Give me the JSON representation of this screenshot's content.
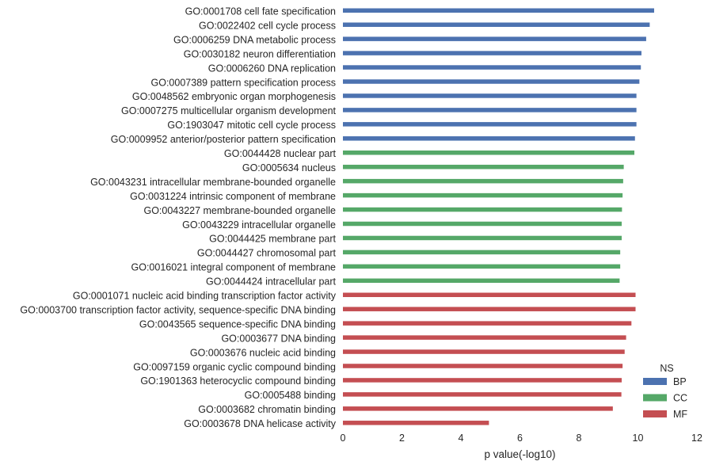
{
  "chart_data": {
    "type": "bar",
    "orientation": "horizontal",
    "xlabel": "p value(-log10)",
    "xlim": [
      0,
      12
    ],
    "xticks": [
      "0",
      "2",
      "4",
      "6",
      "8",
      "10",
      "12"
    ],
    "grid": false,
    "legend": {
      "title": "NS",
      "placement": "bottom-right",
      "entries": [
        {
          "name": "BP",
          "color": "#4C72B0"
        },
        {
          "name": "CC",
          "color": "#55A868"
        },
        {
          "name": "MF",
          "color": "#C44E52"
        }
      ]
    },
    "series": [
      {
        "name": "BP",
        "color": "#4C72B0",
        "categories": [
          "GO:0001708 cell fate specification",
          "GO:0022402 cell cycle process",
          "GO:0006259 DNA metabolic process",
          "GO:0030182 neuron differentiation",
          "GO:0006260 DNA replication",
          "GO:0007389 pattern specification process",
          "GO:0048562 embryonic organ morphogenesis",
          "GO:0007275 multicellular organism development",
          "GO:1903047 mitotic cell cycle process",
          "GO:0009952 anterior/posterior pattern specification"
        ],
        "values": [
          10.55,
          10.4,
          10.28,
          10.12,
          10.1,
          10.05,
          9.95,
          9.95,
          9.95,
          9.9
        ]
      },
      {
        "name": "CC",
        "color": "#55A868",
        "categories": [
          "GO:0044428 nuclear part",
          "GO:0005634 nucleus",
          "GO:0043231 intracellular membrane-bounded organelle",
          "GO:0031224 intrinsic component of membrane",
          "GO:0043227 membrane-bounded organelle",
          "GO:0043229 intracellular organelle",
          "GO:0044425 membrane part",
          "GO:0044427 chromosomal part",
          "GO:0016021 integral component of membrane",
          "GO:0044424 intracellular part"
        ],
        "values": [
          9.88,
          9.52,
          9.5,
          9.48,
          9.46,
          9.45,
          9.45,
          9.4,
          9.4,
          9.38
        ]
      },
      {
        "name": "MF",
        "color": "#C44E52",
        "categories": [
          "GO:0001071 nucleic acid binding transcription factor activity",
          "GO:0003700 transcription factor activity, sequence-specific DNA binding",
          "GO:0043565 sequence-specific DNA binding",
          "GO:0003677 DNA binding",
          "GO:0003676 nucleic acid binding",
          "GO:0097159 organic cyclic compound binding",
          "GO:1901363 heterocyclic compound binding",
          "GO:0005488 binding",
          "GO:0003682 chromatin binding",
          "GO:0003678 DNA helicase activity"
        ],
        "values": [
          9.92,
          9.92,
          9.78,
          9.6,
          9.55,
          9.48,
          9.45,
          9.44,
          9.15,
          4.95
        ]
      }
    ]
  }
}
